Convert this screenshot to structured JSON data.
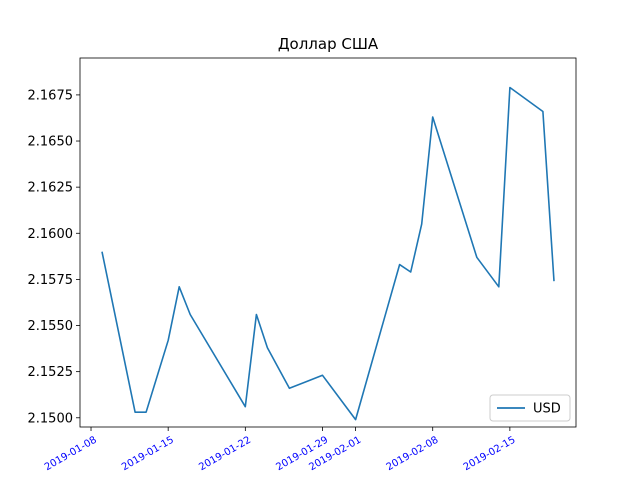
{
  "chart_data": {
    "type": "line",
    "title": "Доллар США",
    "xlabel": "",
    "ylabel": "",
    "x_type": "date",
    "xlim": [
      "2019-01-07",
      "2019-02-21"
    ],
    "ylim": [
      2.1495,
      2.1695
    ],
    "x_ticks": [
      "2019-01-08",
      "2019-01-15",
      "2019-01-22",
      "2019-01-29",
      "2019-02-01",
      "2019-02-08",
      "2019-02-15"
    ],
    "y_ticks": [
      "2.1500",
      "2.1525",
      "2.1550",
      "2.1575",
      "2.1600",
      "2.1625",
      "2.1650",
      "2.1675"
    ],
    "x_tick_color": "#0000ff",
    "grid": false,
    "legend_position": "lower right",
    "series": [
      {
        "name": "USD",
        "color": "#1f77b4",
        "points": [
          {
            "x": "2019-01-09",
            "y": 2.159
          },
          {
            "x": "2019-01-12",
            "y": 2.1503
          },
          {
            "x": "2019-01-13",
            "y": 2.1503
          },
          {
            "x": "2019-01-15",
            "y": 2.1542
          },
          {
            "x": "2019-01-16",
            "y": 2.1571
          },
          {
            "x": "2019-01-17",
            "y": 2.1556
          },
          {
            "x": "2019-01-22",
            "y": 2.1506
          },
          {
            "x": "2019-01-23",
            "y": 2.1556
          },
          {
            "x": "2019-01-24",
            "y": 2.1538
          },
          {
            "x": "2019-01-26",
            "y": 2.1516
          },
          {
            "x": "2019-01-29",
            "y": 2.1523
          },
          {
            "x": "2019-02-01",
            "y": 2.1499
          },
          {
            "x": "2019-02-05",
            "y": 2.1583
          },
          {
            "x": "2019-02-06",
            "y": 2.1579
          },
          {
            "x": "2019-02-07",
            "y": 2.1605
          },
          {
            "x": "2019-02-08",
            "y": 2.1663
          },
          {
            "x": "2019-02-12",
            "y": 2.1587
          },
          {
            "x": "2019-02-14",
            "y": 2.1571
          },
          {
            "x": "2019-02-15",
            "y": 2.1679
          },
          {
            "x": "2019-02-18",
            "y": 2.1666
          },
          {
            "x": "2019-02-19",
            "y": 2.1574
          }
        ]
      }
    ]
  }
}
